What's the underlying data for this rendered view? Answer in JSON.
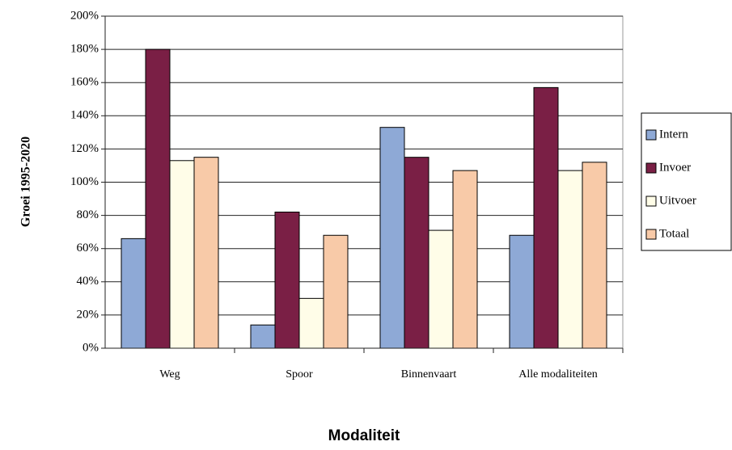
{
  "chart_data": {
    "type": "bar",
    "x_label": "Modaliteit",
    "y_label": "Groei 1995-2020",
    "categories": [
      "Weg",
      "Spoor",
      "Binnenvaart",
      "Alle modaliteiten"
    ],
    "series": [
      {
        "name": "Intern",
        "color": "#8ea9d6",
        "values": [
          66,
          14,
          133,
          68
        ]
      },
      {
        "name": "Invoer",
        "color": "#7a1f45",
        "values": [
          180,
          82,
          115,
          157
        ]
      },
      {
        "name": "Uitvoer",
        "color": "#fffde8",
        "values": [
          113,
          30,
          71,
          107
        ]
      },
      {
        "name": "Totaal",
        "color": "#f8caa8",
        "values": [
          115,
          68,
          107,
          112
        ]
      }
    ],
    "ylim": [
      0,
      200
    ],
    "yticks": [
      {
        "value": 0,
        "label": "0%"
      },
      {
        "value": 20,
        "label": "20%"
      },
      {
        "value": 40,
        "label": "40%"
      },
      {
        "value": 60,
        "label": "60%"
      },
      {
        "value": 80,
        "label": "80%"
      },
      {
        "value": 100,
        "label": "100%"
      },
      {
        "value": 120,
        "label": "120%"
      },
      {
        "value": 140,
        "label": "140%"
      },
      {
        "value": 160,
        "label": "160%"
      },
      {
        "value": 180,
        "label": "180%"
      },
      {
        "value": 200,
        "label": "200%"
      }
    ],
    "grid": true,
    "legend": "right"
  }
}
